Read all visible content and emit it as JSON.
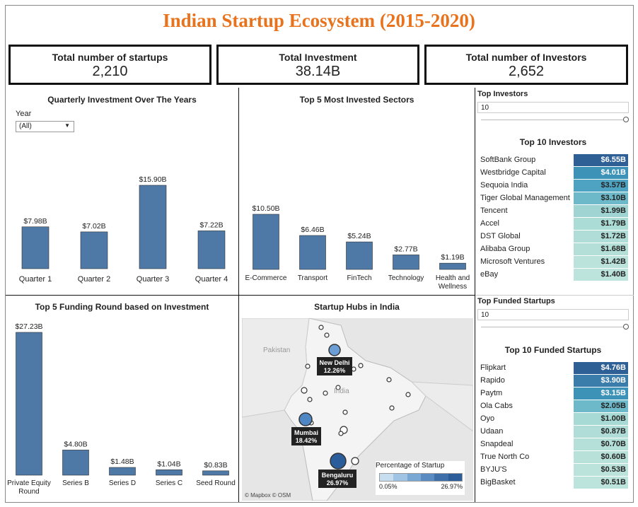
{
  "title": "Indian Startup Ecosystem (2015-2020)",
  "kpis": [
    {
      "label": "Total number of startups",
      "value": "2,210"
    },
    {
      "label": "Total Investment",
      "value": "38.14B"
    },
    {
      "label": "Total number of Investors",
      "value": "2,652"
    }
  ],
  "quarterly": {
    "title": "Quarterly Investment Over The Years",
    "filter_label": "Year",
    "filter_value": "(All)"
  },
  "sectors": {
    "title": "Top 5 Most Invested Sectors"
  },
  "funding": {
    "title": "Top 5 Funding Round based on Investment"
  },
  "map": {
    "title": "Startup Hubs in India",
    "country_labels": [
      "Pakistan",
      "India"
    ],
    "hubs": [
      {
        "name": "New Delhi",
        "pct": "12.26%"
      },
      {
        "name": "Mumbai",
        "pct": "18.42%"
      },
      {
        "name": "Bengaluru",
        "pct": "26.97%"
      }
    ],
    "legend_title": "Percentage of Startup",
    "legend_min": "0.05%",
    "legend_max": "26.97%",
    "attribution": "© Mapbox  © OSM"
  },
  "top_investors": {
    "param_label": "Top Investors",
    "param_value": "10",
    "title": "Top 10 Investors",
    "rows": [
      {
        "name": "SoftBank Group",
        "value": "$6.55B",
        "color": "#2e5f95",
        "textColor": "#ffffff"
      },
      {
        "name": "Westbridge Capital",
        "value": "$4.01B",
        "color": "#3d92b8",
        "textColor": "#ffffff"
      },
      {
        "name": "Sequoia India",
        "value": "$3.57B",
        "color": "#4fa3c2",
        "textColor": "#222222"
      },
      {
        "name": "Tiger Global Management",
        "value": "$3.10B",
        "color": "#6db8c9",
        "textColor": "#222222"
      },
      {
        "name": "Tencent",
        "value": "$1.99B",
        "color": "#9fd4d3",
        "textColor": "#222222"
      },
      {
        "name": "Accel",
        "value": "$1.79B",
        "color": "#acdcd6",
        "textColor": "#222222"
      },
      {
        "name": "DST Global",
        "value": "$1.72B",
        "color": "#b0ddd7",
        "textColor": "#222222"
      },
      {
        "name": "Alibaba Group",
        "value": "$1.68B",
        "color": "#b3dfd8",
        "textColor": "#222222"
      },
      {
        "name": "Microsoft Ventures",
        "value": "$1.42B",
        "color": "#bbe3db",
        "textColor": "#222222"
      },
      {
        "name": "eBay",
        "value": "$1.40B",
        "color": "#bde4dc",
        "textColor": "#222222"
      }
    ]
  },
  "top_startups": {
    "param_label": "Top Funded Startups",
    "param_value": "10",
    "title": "Top 10 Funded Startups",
    "rows": [
      {
        "name": "Flipkart",
        "value": "$4.76B",
        "color": "#2e5f95",
        "textColor": "#ffffff"
      },
      {
        "name": "Rapido",
        "value": "$3.90B",
        "color": "#3a7daa",
        "textColor": "#ffffff"
      },
      {
        "name": "Paytm",
        "value": "$3.15B",
        "color": "#3d92b8",
        "textColor": "#ffffff"
      },
      {
        "name": "Ola Cabs",
        "value": "$2.05B",
        "color": "#6db8c9",
        "textColor": "#222222"
      },
      {
        "name": "Oyo",
        "value": "$1.00B",
        "color": "#a8dad5",
        "textColor": "#222222"
      },
      {
        "name": "Udaan",
        "value": "$0.87B",
        "color": "#b0ddd7",
        "textColor": "#222222"
      },
      {
        "name": "Snapdeal",
        "value": "$0.70B",
        "color": "#b5e0d9",
        "textColor": "#222222"
      },
      {
        "name": "True North Co",
        "value": "$0.60B",
        "color": "#b8e1da",
        "textColor": "#222222"
      },
      {
        "name": "BYJU'S",
        "value": "$0.53B",
        "color": "#bbe3db",
        "textColor": "#222222"
      },
      {
        "name": "BigBasket",
        "value": "$0.51B",
        "color": "#bde4dc",
        "textColor": "#222222"
      }
    ]
  },
  "colors": {
    "bar": "#4e79a7",
    "title": "#e8731c"
  },
  "chart_data": [
    {
      "type": "bar",
      "title": "Quarterly Investment Over The Years",
      "categories": [
        "Quarter 1",
        "Quarter 2",
        "Quarter 3",
        "Quarter 4"
      ],
      "values": [
        7.98,
        7.02,
        15.9,
        7.22
      ],
      "labels": [
        "$7.98B",
        "$7.02B",
        "$15.90B",
        "$7.22B"
      ]
    },
    {
      "type": "bar",
      "title": "Top 5 Most Invested Sectors",
      "categories": [
        "E-Commerce",
        "Transport",
        "FinTech",
        "Technology",
        "Health and Wellness"
      ],
      "values": [
        10.5,
        6.46,
        5.24,
        2.77,
        1.19
      ],
      "labels": [
        "$10.50B",
        "$6.46B",
        "$5.24B",
        "$2.77B",
        "$1.19B"
      ]
    },
    {
      "type": "bar",
      "title": "Top 5 Funding Round based on Investment",
      "categories": [
        "Private Equity Round",
        "Series B",
        "Series D",
        "Series C",
        "Seed Round"
      ],
      "values": [
        27.23,
        4.8,
        1.48,
        1.04,
        0.83
      ],
      "labels": [
        "$27.23B",
        "$4.80B",
        "$1.48B",
        "$1.04B",
        "$0.83B"
      ]
    }
  ]
}
